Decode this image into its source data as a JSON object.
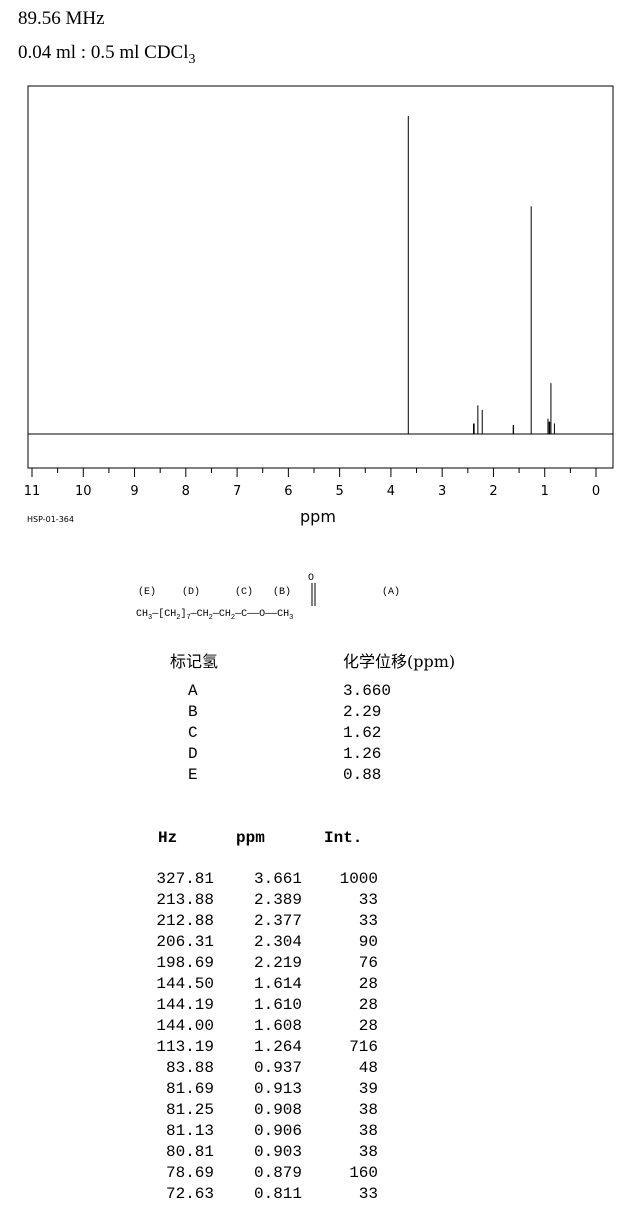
{
  "header": {
    "frequency": "89.56 MHz",
    "sample_main": "0.04 ml : 0.5 ml CDCl",
    "sample_sub": "3"
  },
  "spectrum_id": "HSP-01-364",
  "chart_data": {
    "type": "line",
    "xlabel": "ppm",
    "xlim": [
      11,
      0
    ],
    "x_reversed": true,
    "x_ticks": [
      "11",
      "10",
      "9",
      "8",
      "7",
      "6",
      "5",
      "4",
      "3",
      "2",
      "1",
      "0"
    ],
    "ylim": [
      0,
      1000
    ],
    "grid": false,
    "series": [
      {
        "peaks": [
          {
            "x": 3.661,
            "y": 1000
          },
          {
            "x": 2.389,
            "y": 33
          },
          {
            "x": 2.377,
            "y": 33
          },
          {
            "x": 2.304,
            "y": 90
          },
          {
            "x": 2.219,
            "y": 76
          },
          {
            "x": 1.614,
            "y": 28
          },
          {
            "x": 1.61,
            "y": 28
          },
          {
            "x": 1.608,
            "y": 28
          },
          {
            "x": 1.264,
            "y": 716
          },
          {
            "x": 0.937,
            "y": 48
          },
          {
            "x": 0.913,
            "y": 39
          },
          {
            "x": 0.908,
            "y": 38
          },
          {
            "x": 0.906,
            "y": 38
          },
          {
            "x": 0.903,
            "y": 38
          },
          {
            "x": 0.879,
            "y": 160
          },
          {
            "x": 0.811,
            "y": 33
          }
        ]
      }
    ]
  },
  "structure": {
    "formula": "CH3-[CH2]7-CH2-CH2-C(=O)-O-CH3",
    "letters": [
      "(E)",
      "(D)",
      "(C)",
      "(B)",
      "(A)"
    ],
    "oxygen": "O"
  },
  "assignment": {
    "col_label": "标记氢",
    "col_shift": "化学位移(ppm)",
    "rows": [
      {
        "label": "A",
        "shift": "3.660"
      },
      {
        "label": "B",
        "shift": "2.29"
      },
      {
        "label": "C",
        "shift": "1.62"
      },
      {
        "label": "D",
        "shift": "1.26"
      },
      {
        "label": "E",
        "shift": "0.88"
      }
    ]
  },
  "peak_table": {
    "headers": [
      "Hz",
      "ppm",
      "Int."
    ],
    "rows": [
      [
        "327.81",
        "3.661",
        "1000"
      ],
      [
        "213.88",
        "2.389",
        "33"
      ],
      [
        "212.88",
        "2.377",
        "33"
      ],
      [
        "206.31",
        "2.304",
        "90"
      ],
      [
        "198.69",
        "2.219",
        "76"
      ],
      [
        "144.50",
        "1.614",
        "28"
      ],
      [
        "144.19",
        "1.610",
        "28"
      ],
      [
        "144.00",
        "1.608",
        "28"
      ],
      [
        "113.19",
        "1.264",
        "716"
      ],
      [
        "83.88",
        "0.937",
        "48"
      ],
      [
        "81.69",
        "0.913",
        "39"
      ],
      [
        "81.25",
        "0.908",
        "38"
      ],
      [
        "81.13",
        "0.906",
        "38"
      ],
      [
        "80.81",
        "0.903",
        "38"
      ],
      [
        "78.69",
        "0.879",
        "160"
      ],
      [
        "72.63",
        "0.811",
        "33"
      ]
    ]
  }
}
